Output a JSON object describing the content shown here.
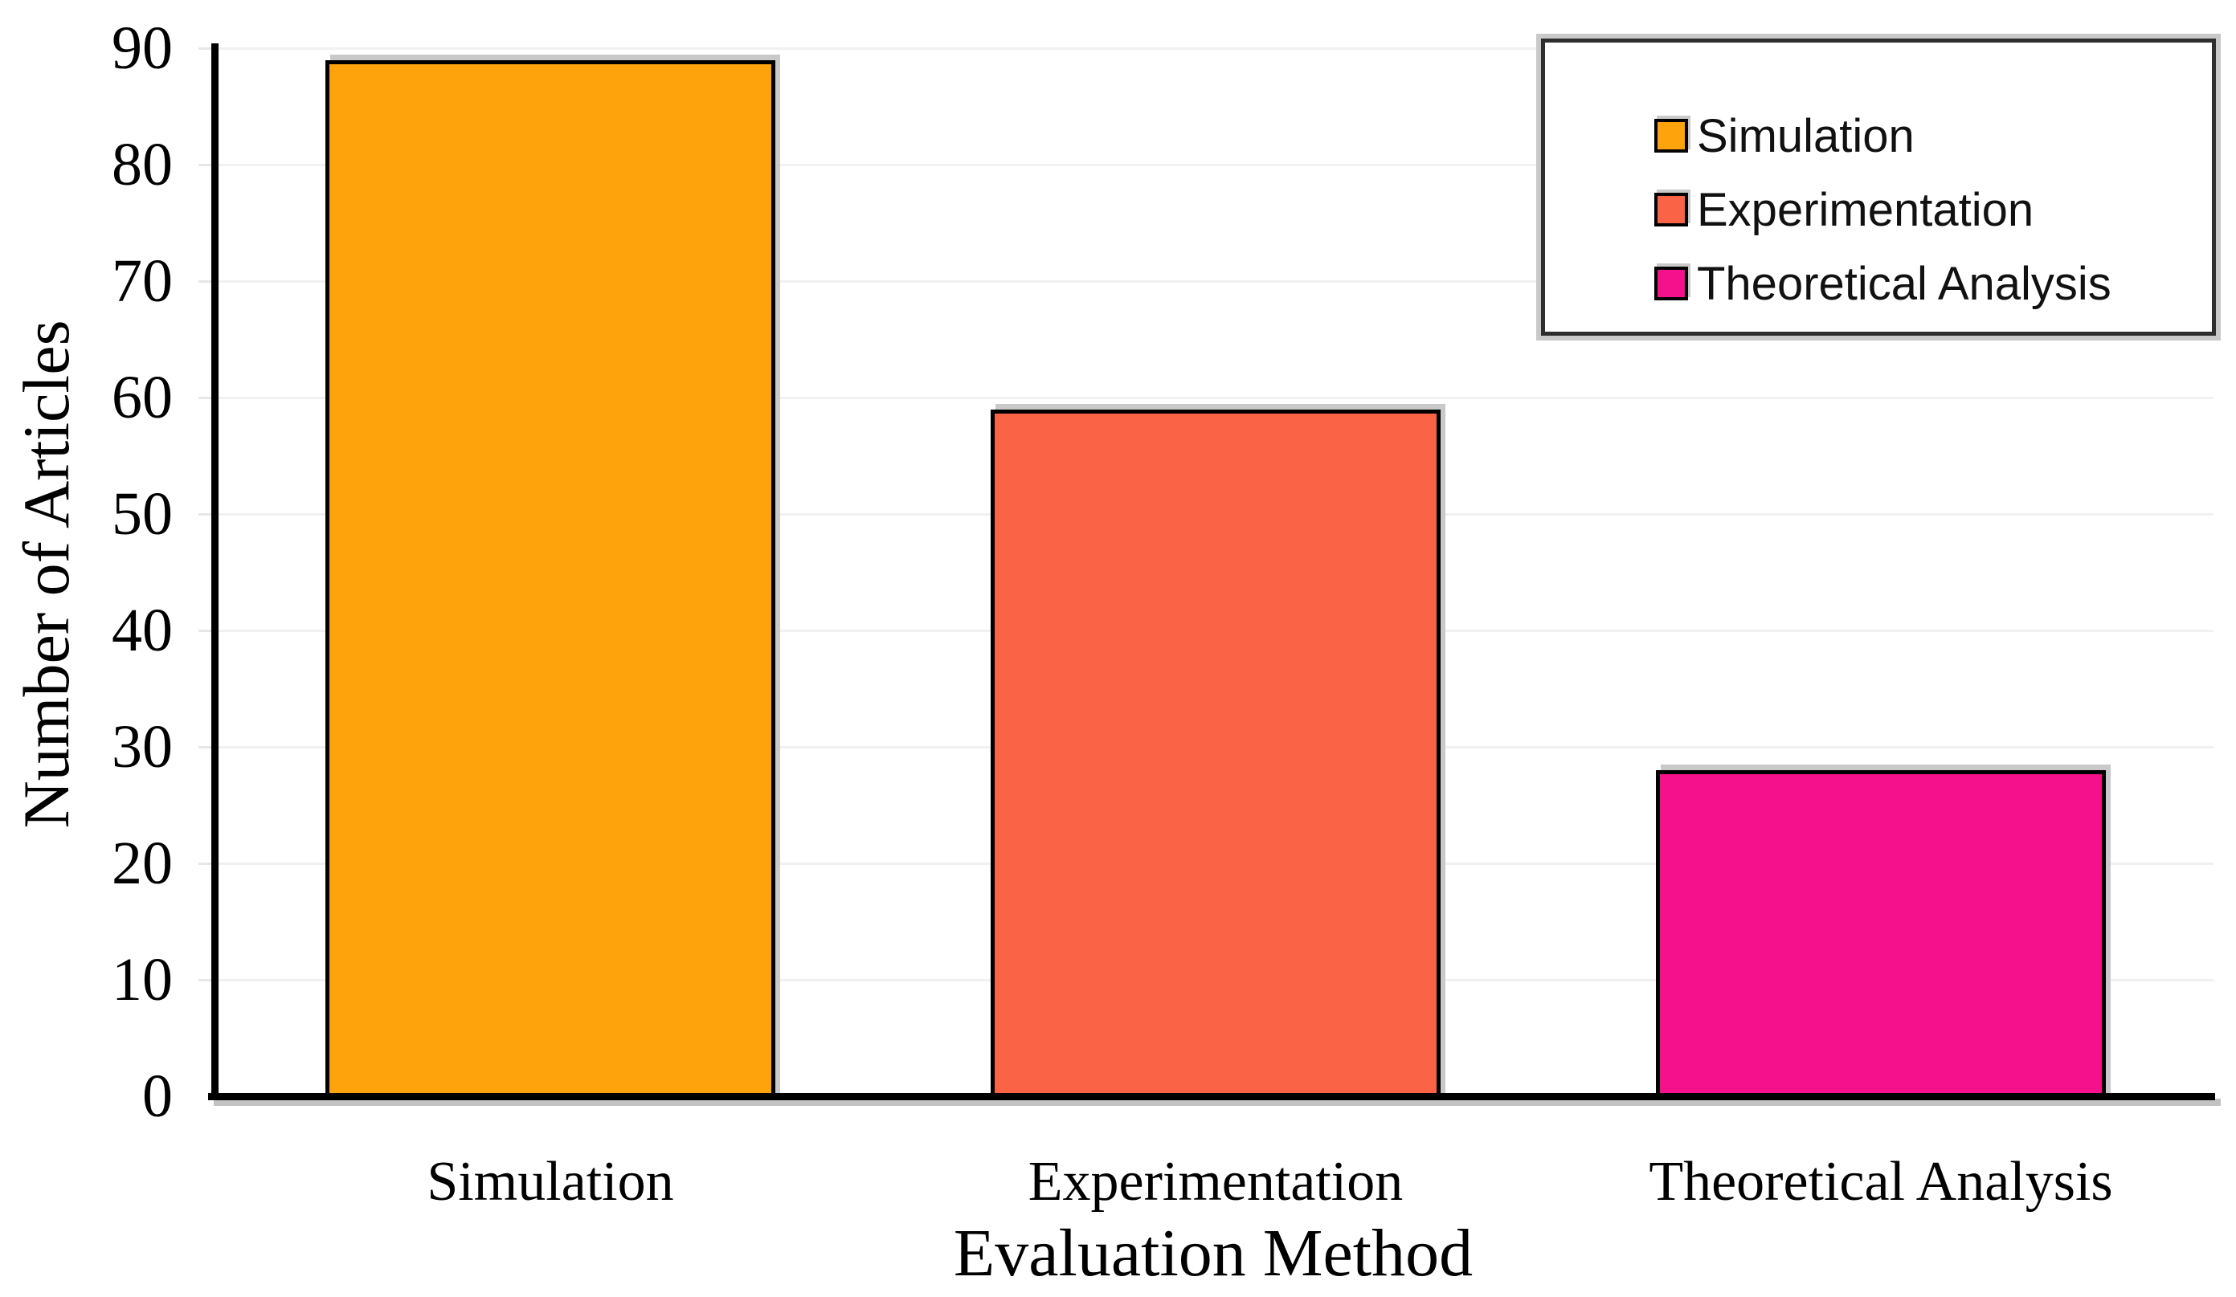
{
  "chart_data": {
    "type": "bar",
    "title": "",
    "categories": [
      "Simulation",
      "Experimentation",
      "Theoretical Analysis"
    ],
    "values": [
      89,
      59,
      28
    ],
    "bar_colors": [
      "#FEA30B",
      "#FB6347",
      "#F5108C"
    ],
    "xlabel": "Evaluation Method",
    "ylabel": "Number of Articles",
    "ylim": [
      0,
      90
    ],
    "yticks": [
      0,
      10,
      20,
      30,
      40,
      50,
      60,
      70,
      80,
      90
    ],
    "grid": "horizontal-light",
    "legend": {
      "position": "top-right",
      "entries": [
        {
          "label": "Simulation",
          "color": "#FEA30B"
        },
        {
          "label": "Experimentation",
          "color": "#FB6347"
        },
        {
          "label": "Theoretical Analysis",
          "color": "#F5108C"
        }
      ]
    },
    "colors": {
      "background": "#ffffff",
      "axis": "#000000",
      "gridline": "#f1f1f1",
      "shadow": "#c9c9c9",
      "legend_border": "#2e2e2e",
      "text": "#000000"
    }
  }
}
